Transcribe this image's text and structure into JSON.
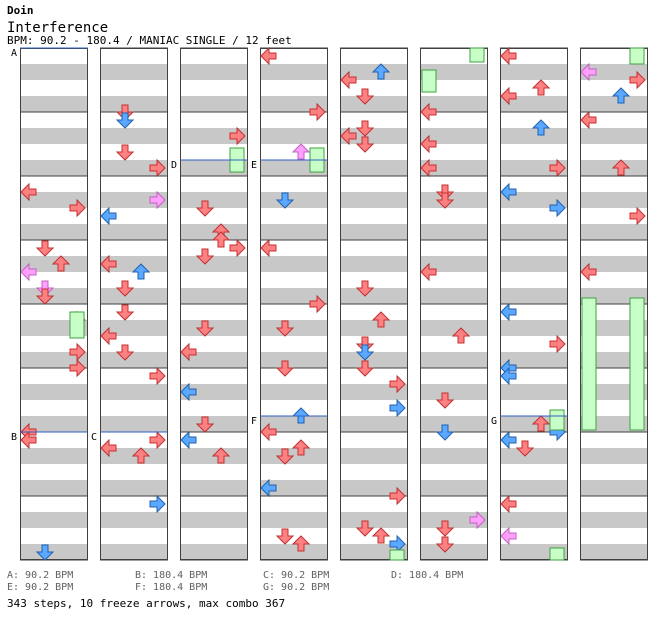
{
  "header": {
    "artist": "Doin",
    "title": "Interference",
    "meta": "BPM: 90.2 - 180.4 / MANIAC SINGLE / 12 feet"
  },
  "markers": [
    "A",
    "B",
    "C",
    "D",
    "E",
    "F",
    "G"
  ],
  "legend": [
    "A: 90.2 BPM",
    "B: 180.4 BPM",
    "C: 90.2 BPM",
    "D: 180.4 BPM",
    "E: 90.2 BPM",
    "F: 180.4 BPM",
    "G: 90.2 BPM"
  ],
  "stats": "343 steps, 10 freeze arrows, max combo 367",
  "colors": {
    "quarter": "#ff8080",
    "eighth": "#5aa8ff",
    "sixteenth": "#ffa0ff",
    "freeze": "#c8ffc8",
    "band": "#c8c8c8",
    "bpm_line": "#3060c0"
  }
}
